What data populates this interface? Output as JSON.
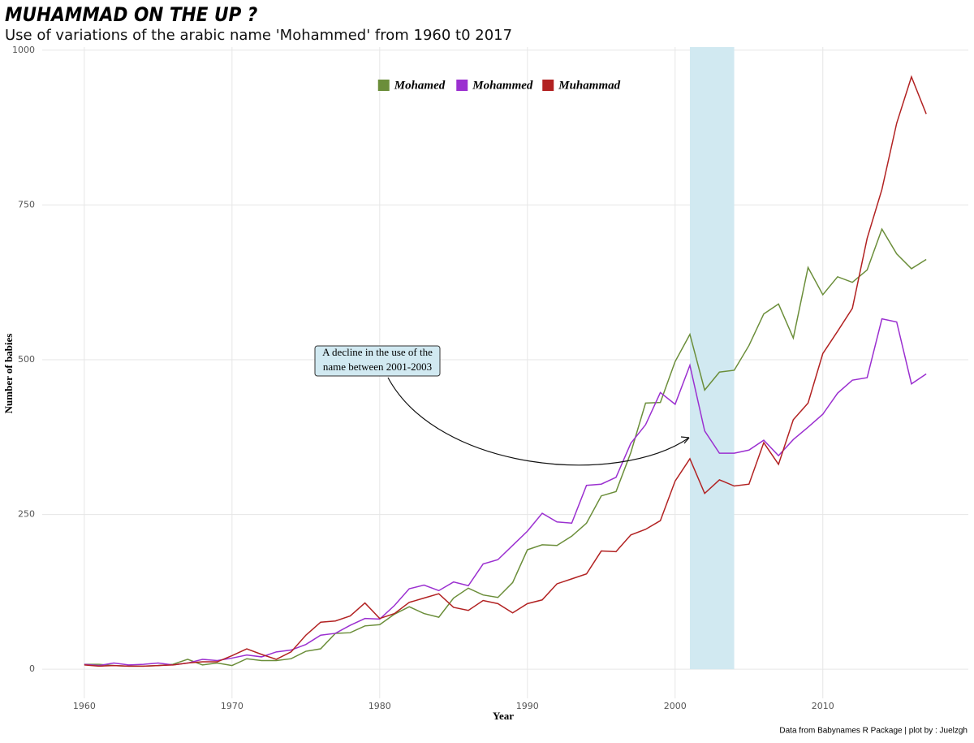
{
  "chart_data": {
    "type": "line",
    "title": "MUHAMMAD ON THE UP ?",
    "subtitle": "Use of variations of the arabic name 'Mohammed' from 1960 t0 2017",
    "x_label": "Year",
    "y_label": "Number of babies",
    "caption": "Data from Babynames R Package | plot by : Juelzgh",
    "annotation": [
      "A decline in the use of the",
      "name between 2001-2003"
    ],
    "highlight": {
      "xmin": 2001,
      "xmax": 2004,
      "color": "#d1e9f1"
    },
    "legend": "top",
    "grid": true,
    "xlim": [
      1957.15,
      2019.85
    ],
    "ylim": [
      -47,
      1005
    ],
    "xticks": [
      1960,
      1970,
      1980,
      1990,
      2000,
      2010
    ],
    "yticks": [
      0,
      250,
      500,
      750,
      1000
    ],
    "x": [
      1960,
      1961,
      1962,
      1963,
      1964,
      1965,
      1966,
      1967,
      1968,
      1969,
      1970,
      1971,
      1972,
      1973,
      1974,
      1975,
      1976,
      1977,
      1978,
      1979,
      1980,
      1981,
      1982,
      1983,
      1984,
      1985,
      1986,
      1987,
      1988,
      1989,
      1990,
      1991,
      1992,
      1993,
      1994,
      1995,
      1996,
      1997,
      1998,
      1999,
      2000,
      2001,
      2002,
      2003,
      2004,
      2005,
      2006,
      2007,
      2008,
      2009,
      2010,
      2011,
      2012,
      2013,
      2014,
      2015,
      2016,
      2017
    ],
    "series": [
      {
        "name": "Mohamed",
        "color": "#6b8e3a",
        "values": [
          8,
          8,
          6,
          5,
          5,
          6,
          8,
          16,
          7,
          10,
          6,
          17,
          14,
          14,
          17,
          29,
          33,
          58,
          59,
          70,
          72,
          89,
          101,
          90,
          84,
          115,
          131,
          120,
          116,
          140,
          193,
          201,
          200,
          215,
          236,
          280,
          287,
          350,
          430,
          431,
          497,
          541,
          451,
          480,
          483,
          523,
          574,
          590,
          535,
          649,
          605,
          634,
          625,
          645,
          711,
          671,
          647,
          662
        ]
      },
      {
        "name": "Mohammed",
        "color": "#9b30d0",
        "values": [
          8,
          6,
          10,
          7,
          8,
          10,
          7,
          10,
          16,
          14,
          18,
          23,
          20,
          28,
          31,
          40,
          55,
          58,
          71,
          82,
          81,
          103,
          130,
          136,
          127,
          141,
          135,
          170,
          177,
          200,
          223,
          252,
          238,
          236,
          297,
          299,
          310,
          365,
          395,
          447,
          428,
          491,
          385,
          349,
          349,
          354,
          370,
          345,
          371,
          391,
          412,
          446,
          467,
          471,
          566,
          561,
          461,
          477
        ]
      },
      {
        "name": "Muhammad",
        "color": "#b22222",
        "values": [
          7,
          5,
          6,
          5,
          5,
          6,
          7,
          10,
          12,
          12,
          22,
          33,
          24,
          16,
          28,
          55,
          76,
          78,
          86,
          107,
          82,
          90,
          108,
          115,
          122,
          100,
          95,
          111,
          106,
          91,
          106,
          112,
          138,
          146,
          154,
          191,
          190,
          217,
          226,
          240,
          304,
          340,
          284,
          306,
          296,
          299,
          366,
          331,
          403,
          430,
          510,
          546,
          583,
          696,
          775,
          882,
          957,
          897
        ]
      }
    ]
  }
}
